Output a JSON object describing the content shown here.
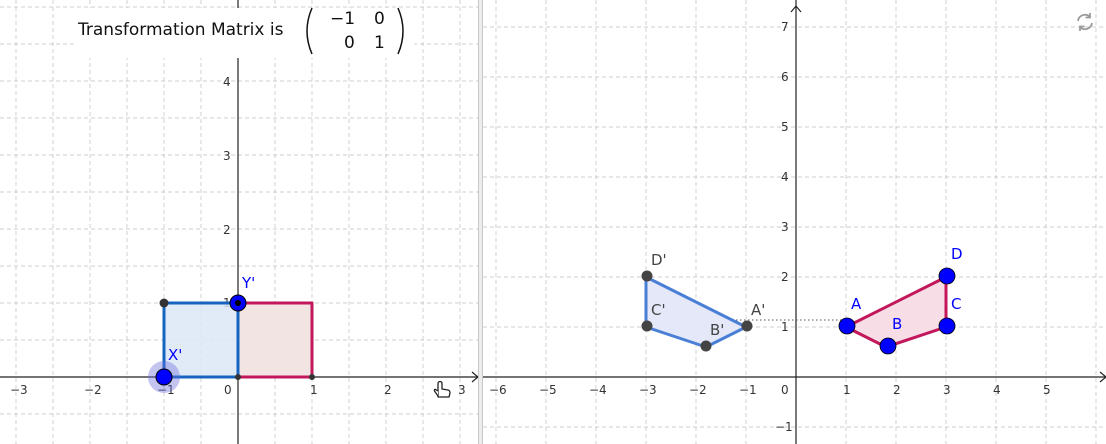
{
  "matrix": {
    "label": "Transformation Matrix is",
    "row1": [
      "−1",
      "0"
    ],
    "row2": [
      "0",
      "1"
    ]
  },
  "left_graph": {
    "x_ticks": [
      "−3",
      "−2",
      "−1",
      "0",
      "1",
      "2",
      "3"
    ],
    "y_ticks": [
      "1",
      "2",
      "3",
      "4"
    ],
    "points": {
      "x_prime": "X'",
      "y_prime": "Y'"
    },
    "square_image": [
      [
        -1,
        0
      ],
      [
        0,
        0
      ],
      [
        0,
        1
      ],
      [
        -1,
        1
      ]
    ],
    "square_original": [
      [
        0,
        0
      ],
      [
        1,
        0
      ],
      [
        1,
        1
      ],
      [
        0,
        1
      ]
    ]
  },
  "right_graph": {
    "x_ticks": [
      "−6",
      "−5",
      "−4",
      "−3",
      "−2",
      "−1",
      "0",
      "1",
      "2",
      "3",
      "4",
      "5"
    ],
    "y_ticks": [
      "−1",
      "1",
      "2",
      "3",
      "4",
      "5",
      "6",
      "7"
    ],
    "original_labels": {
      "A": "A",
      "B": "B",
      "C": "C",
      "D": "D"
    },
    "image_labels": {
      "A": "A'",
      "B": "B'",
      "C": "C'",
      "D": "D'"
    },
    "original_polygon": [
      [
        1,
        1
      ],
      [
        1.8,
        0.6
      ],
      [
        3,
        1
      ],
      [
        3,
        2
      ]
    ],
    "image_polygon": [
      [
        -1,
        1
      ],
      [
        -1.8,
        0.6
      ],
      [
        -3,
        1
      ],
      [
        -3,
        2
      ]
    ]
  },
  "colors": {
    "grid": "#c0c0c0",
    "axis": "#222222",
    "image_stroke": "#1565c0",
    "image_fill": "#dce8f7",
    "original_stroke": "#c2185b",
    "original_fill": "#f3e4e4",
    "point_blue": "#0000ff",
    "point_dark": "#333333"
  },
  "icons": {
    "reset": "reset-arrows-icon",
    "cursor": "hand-cursor-icon"
  }
}
